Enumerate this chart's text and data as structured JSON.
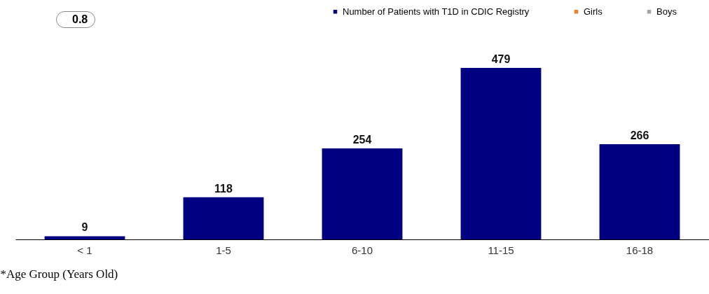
{
  "chart_data": {
    "type": "bar",
    "xlabel": "*Age Group (Years Old)",
    "annotations": [
      "0.8"
    ],
    "categories": [
      "< 1",
      "1-5",
      "6-10",
      "11-15",
      "16-18"
    ],
    "series": [
      {
        "name": "Number of Patients with T1D in CDIC Registry",
        "color": "#000080",
        "values": [
          9,
          118,
          254,
          479,
          266
        ]
      },
      {
        "name": "Girls",
        "color": "#ed7d31",
        "values": [
          null,
          null,
          null,
          null,
          null
        ]
      },
      {
        "name": "Boys",
        "color": "#a5a5a5",
        "values": [
          null,
          null,
          null,
          null,
          null
        ]
      }
    ],
    "tick_labels": "x",
    "data_labels": true,
    "grid": false,
    "legend": "top"
  }
}
